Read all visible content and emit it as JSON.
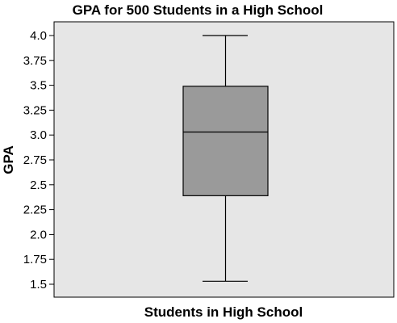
{
  "chart_data": {
    "type": "box",
    "title": "GPA for 500 Students in a High School",
    "xlabel": "Students in High School",
    "ylabel": "GPA",
    "ylim": [
      1.5,
      4.0
    ],
    "y_ticks": [
      "4.0",
      "3.75",
      "3.5",
      "3.25",
      "3.0",
      "2.75",
      "2.5",
      "2.25",
      "2.0",
      "1.75",
      "1.5"
    ],
    "grid": false,
    "colors": {
      "plot_background": "#e6e6e6",
      "box_fill": "#9a9a9a",
      "stroke": "#000000"
    },
    "box": {
      "min": 1.53,
      "q1": 2.39,
      "median": 3.03,
      "q3": 3.49,
      "max": 4.0
    }
  }
}
